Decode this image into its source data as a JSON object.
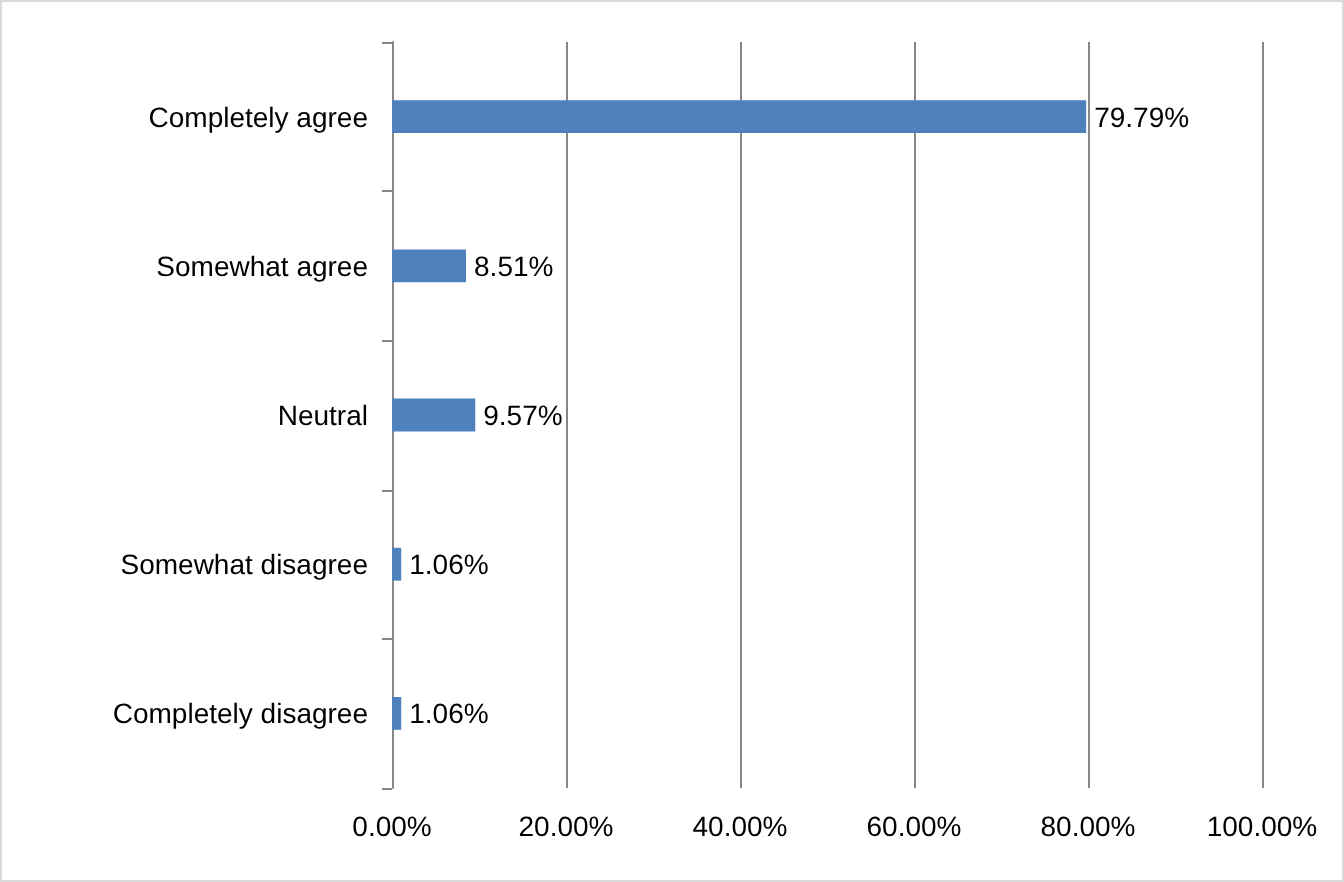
{
  "chart_data": {
    "type": "bar",
    "orientation": "horizontal",
    "categories": [
      "Completely agree",
      "Somewhat agree",
      "Neutral",
      "Somewhat disagree",
      "Completely disagree"
    ],
    "values": [
      79.79,
      8.51,
      9.57,
      1.06,
      1.06
    ],
    "value_labels": [
      "79.79%",
      "8.51%",
      "9.57%",
      "1.06%",
      "1.06%"
    ],
    "color": "#4f81bd",
    "xlim": [
      0,
      100
    ],
    "xticks": [
      {
        "value": 0,
        "label": "0.00%"
      },
      {
        "value": 20,
        "label": "20.00%"
      },
      {
        "value": 40,
        "label": "40.00%"
      },
      {
        "value": 60,
        "label": "60.00%"
      },
      {
        "value": 80,
        "label": "80.00%"
      },
      {
        "value": 100,
        "label": "100.00%"
      }
    ],
    "grid": "x"
  }
}
